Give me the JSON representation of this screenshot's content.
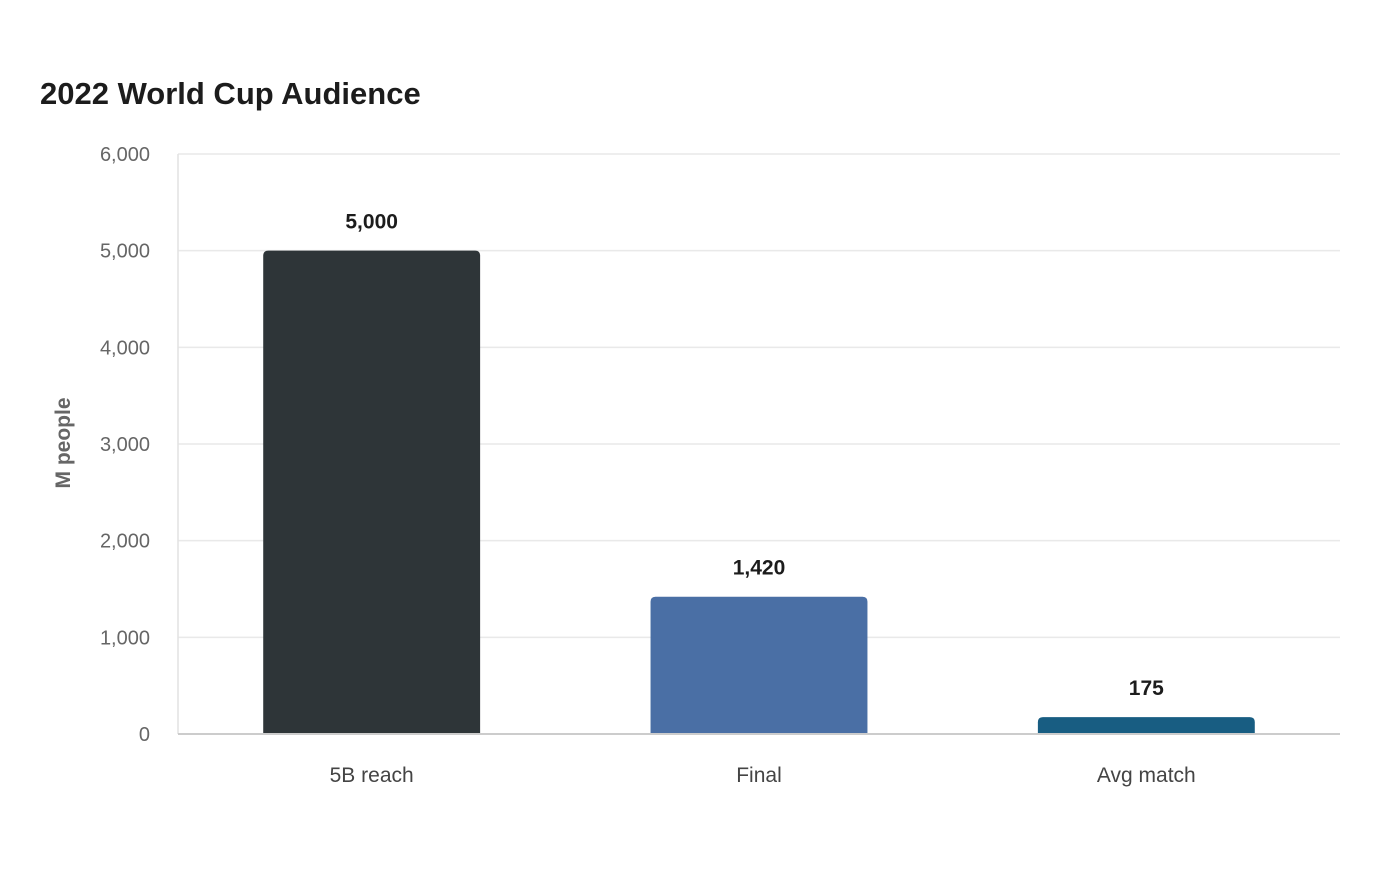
{
  "chart_data": {
    "type": "bar",
    "title": "2022 World Cup Audience",
    "xlabel": "",
    "ylabel": "M people",
    "categories": [
      "5B reach",
      "Final",
      "Avg match"
    ],
    "values": [
      5000,
      1420,
      175
    ],
    "value_labels": [
      "5,000",
      "1,420",
      "175"
    ],
    "ylim": [
      0,
      6000
    ],
    "yticks": [
      0,
      1000,
      2000,
      3000,
      4000,
      5000,
      6000
    ],
    "ytick_labels": [
      "0",
      "1,000",
      "2,000",
      "3,000",
      "4,000",
      "5,000",
      "6,000"
    ],
    "colors": [
      "#2e3538",
      "#4a6fa5",
      "#185d82"
    ],
    "grid": true,
    "legend": "none"
  }
}
